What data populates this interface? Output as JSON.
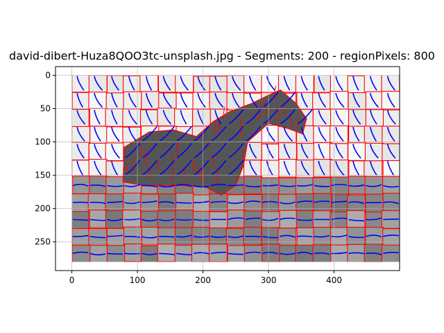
{
  "chart_data": {
    "type": "image-segmentation",
    "title": "david-dibert-Huza8QOO3tc-unsplash.jpg - Segments: 200 - regionPixels: 800",
    "xlim": [
      -25,
      500
    ],
    "ylim": [
      293,
      -13
    ],
    "x_ticks": [
      0,
      100,
      200,
      300,
      400
    ],
    "y_ticks": [
      0,
      50,
      100,
      150,
      200,
      250
    ],
    "image_extent": {
      "width": 500,
      "height": 280
    },
    "grid": true,
    "colors": {
      "segment_border": "#ff0000",
      "flow_lines": "#0000ff",
      "sky_light": "#f2f2f2",
      "horse_dark": "#555555",
      "ground_mid": "#9a9a9a"
    },
    "foreground_object": {
      "label_shown": false,
      "approx_outline": [
        [
          80,
          108
        ],
        [
          118,
          85
        ],
        [
          155,
          82
        ],
        [
          190,
          92
        ],
        [
          215,
          70
        ],
        [
          240,
          55
        ],
        [
          275,
          42
        ],
        [
          300,
          30
        ],
        [
          318,
          22
        ],
        [
          342,
          42
        ],
        [
          358,
          65
        ],
        [
          352,
          88
        ],
        [
          330,
          80
        ],
        [
          300,
          72
        ],
        [
          268,
          100
        ],
        [
          262,
          135
        ],
        [
          250,
          165
        ],
        [
          228,
          180
        ],
        [
          205,
          168
        ],
        [
          160,
          165
        ],
        [
          110,
          165
        ],
        [
          78,
          160
        ]
      ]
    }
  }
}
